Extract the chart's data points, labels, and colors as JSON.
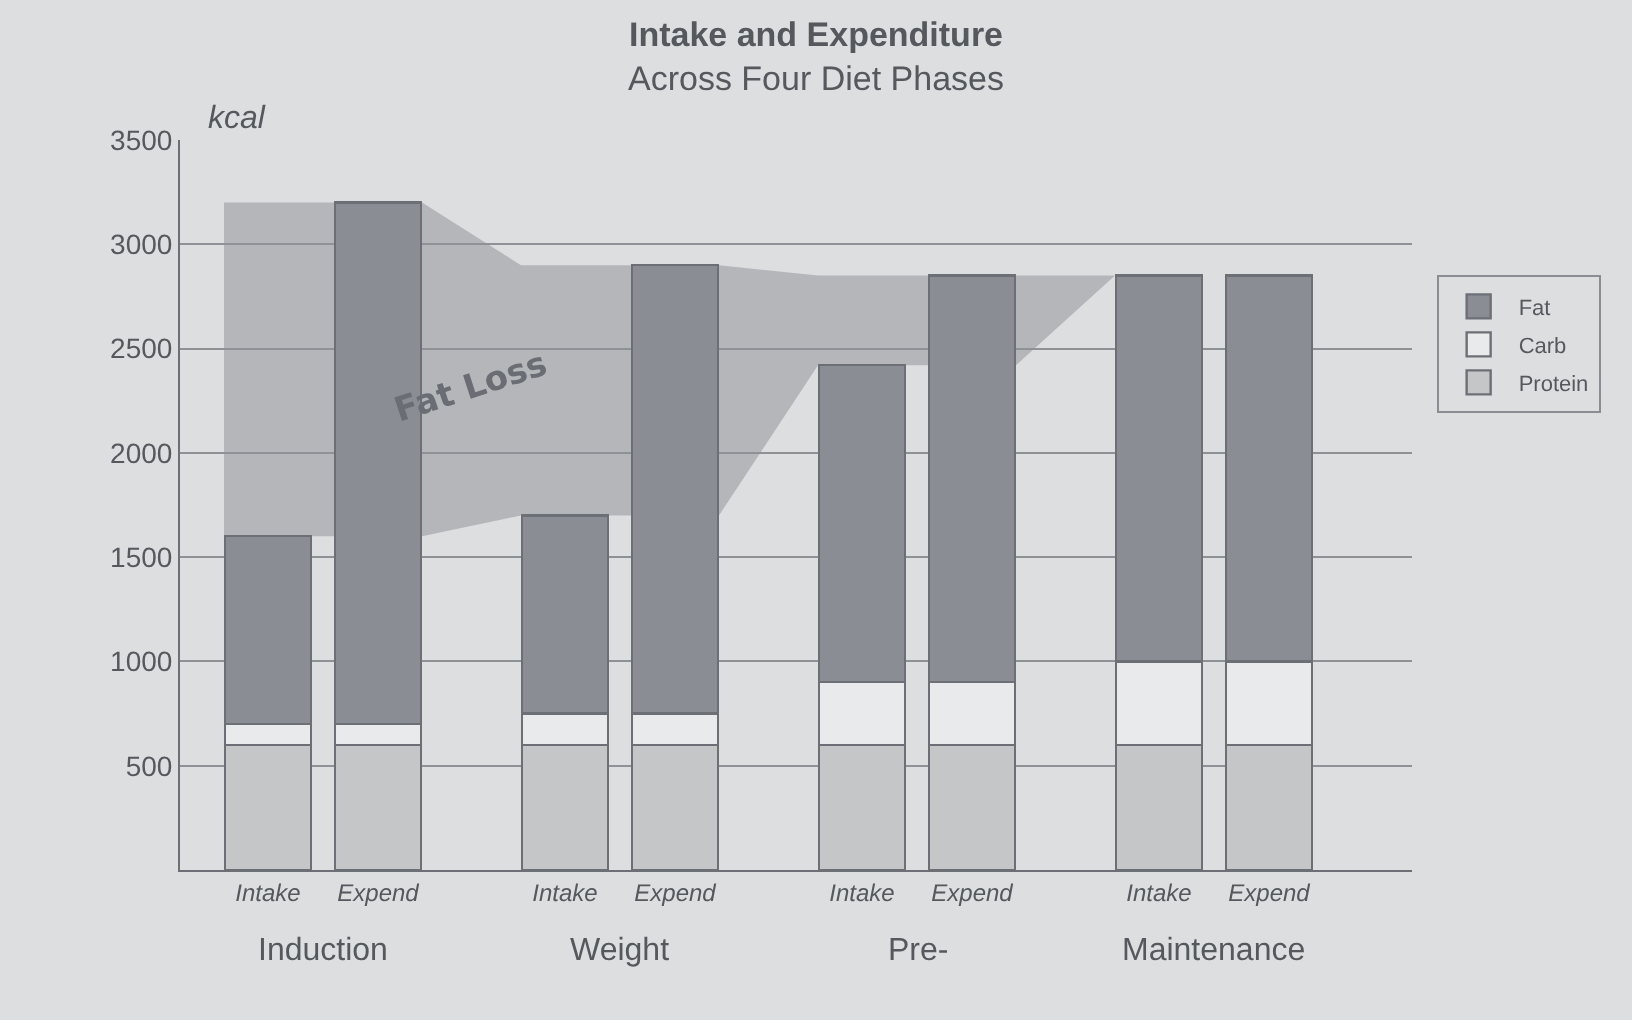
{
  "chart_data": {
    "type": "bar",
    "title": "Intake and Expenditure",
    "subtitle": "Across Four Diet Phases",
    "ylabel": "kcal",
    "categories": [
      "Intake",
      "Expend",
      "Intake",
      "Expend",
      "Intake",
      "Expend",
      "Intake",
      "Expend"
    ],
    "stacked": true,
    "series": [
      {
        "name": "Protein",
        "color": "#c4c6c8",
        "values": [
          600,
          600,
          600,
          600,
          600,
          600,
          600,
          600
        ]
      },
      {
        "name": "Carb",
        "color": "#e8eaec",
        "values": [
          100,
          100,
          150,
          150,
          300,
          300,
          400,
          400
        ]
      },
      {
        "name": "Fat",
        "color": "#8a8e94",
        "values": [
          900,
          2500,
          950,
          2150,
          1520,
          1950,
          1850,
          1850
        ]
      }
    ],
    "ylim": [
      0,
      3500
    ],
    "yticks": [
      500,
      1000,
      1500,
      2000,
      2500,
      3000,
      3500
    ],
    "grid": "y",
    "legend": "right",
    "annotations": [
      "Fat Loss",
      "Induction",
      "Weight",
      "Pre-",
      "Maintenance"
    ]
  }
}
